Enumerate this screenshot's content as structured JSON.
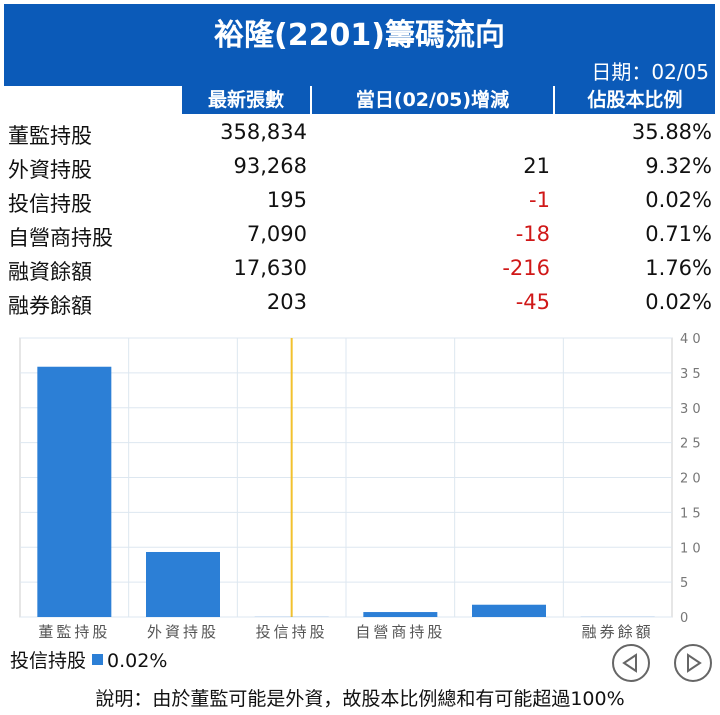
{
  "header": {
    "title": "裕隆(2201)籌碼流向",
    "date": "日期：02/05"
  },
  "columns": [
    "最新張數",
    "當日(02/05)增減",
    "佔股本比例"
  ],
  "rows": [
    {
      "label": "董監持股",
      "shares": "358,834",
      "change": "",
      "ratio": "35.88%"
    },
    {
      "label": "外資持股",
      "shares": "93,268",
      "change": "21",
      "ratio": "9.32%"
    },
    {
      "label": "投信持股",
      "shares": "195",
      "change": "-1",
      "ratio": "0.02%"
    },
    {
      "label": "自營商持股",
      "shares": "7,090",
      "change": "-18",
      "ratio": "0.71%"
    },
    {
      "label": "融資餘額",
      "shares": "17,630",
      "change": "-216",
      "ratio": "1.76%"
    },
    {
      "label": "融券餘額",
      "shares": "203",
      "change": "-45",
      "ratio": "0.02%"
    }
  ],
  "chart_data": {
    "type": "bar",
    "categories": [
      "董監持股",
      "外資持股",
      "投信持股",
      "自營商持股",
      "融資餘額",
      "融券餘額"
    ],
    "tick_labels": [
      "董監持股",
      "外資持股",
      "投信持股",
      "自營商持股",
      "",
      "融券餘額"
    ],
    "values": [
      35.88,
      9.32,
      0.02,
      0.71,
      1.76,
      0.02
    ],
    "ylim": [
      0,
      40
    ],
    "yticks": [
      "4 0",
      "3 5",
      "3 0",
      "2 5",
      "2 0",
      "1 5",
      "1 0",
      "5",
      "0"
    ],
    "highlight_index": 2,
    "bar_color": "#2c7fd6",
    "highlight_color": "#f2c12e",
    "grid": true
  },
  "legend": {
    "label": "投信持股",
    "value": "0.02%"
  },
  "note": "說明：由於董監可能是外資，故股本比例總和有可能超過100%"
}
